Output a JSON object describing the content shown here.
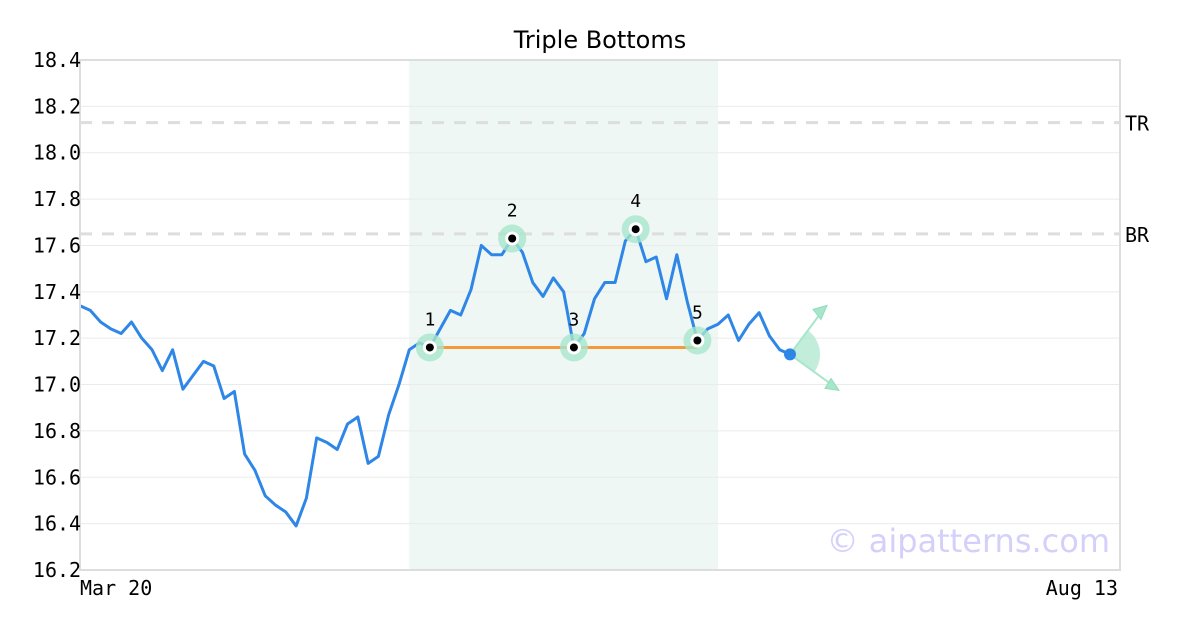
{
  "chart_data": {
    "type": "line",
    "title": "Triple Bottoms",
    "xlabel": "",
    "ylabel": "",
    "ylim": [
      16.2,
      18.4
    ],
    "yticks": [
      "16.2",
      "16.4",
      "16.6",
      "16.8",
      "17.0",
      "17.2",
      "17.4",
      "17.6",
      "17.8",
      "18.0",
      "18.2",
      "18.4"
    ],
    "xtick_labels": {
      "start": "Mar 20",
      "end": "Aug 13"
    },
    "grid": true,
    "values": [
      17.34,
      17.32,
      17.27,
      17.24,
      17.22,
      17.27,
      17.2,
      17.15,
      17.06,
      17.15,
      16.98,
      17.04,
      17.1,
      17.08,
      16.94,
      16.97,
      16.7,
      16.63,
      16.52,
      16.48,
      16.45,
      16.39,
      16.51,
      16.77,
      16.75,
      16.72,
      16.83,
      16.86,
      16.66,
      16.69,
      16.87,
      17.0,
      17.15,
      17.18,
      17.16,
      17.24,
      17.32,
      17.3,
      17.41,
      17.6,
      17.56,
      17.56,
      17.63,
      17.57,
      17.44,
      17.38,
      17.46,
      17.4,
      17.16,
      17.22,
      17.37,
      17.44,
      17.44,
      17.62,
      17.67,
      17.53,
      17.55,
      17.37,
      17.56,
      17.36,
      17.19,
      17.24,
      17.26,
      17.3,
      17.19,
      17.26,
      17.31,
      17.21,
      17.15,
      17.13
    ],
    "pattern_points": [
      {
        "label": "1",
        "index": 34,
        "value": 17.16
      },
      {
        "label": "2",
        "index": 42,
        "value": 17.63
      },
      {
        "label": "3",
        "index": 48,
        "value": 17.16
      },
      {
        "label": "4",
        "index": 54,
        "value": 17.67
      },
      {
        "label": "5",
        "index": 60,
        "value": 17.19
      }
    ],
    "support_level": 17.16,
    "reference_lines": [
      {
        "label": "TR",
        "value": 18.13
      },
      {
        "label": "BR",
        "value": 17.65
      }
    ],
    "pattern_region": {
      "start_index": 32,
      "end_index": 62
    },
    "colors": {
      "line": "#2e86e6",
      "support": "#f59a3c",
      "marker": "#a8e6cc",
      "region": "#eef7f4",
      "ref": "#dddddd"
    }
  },
  "watermark": "© aipatterns.com"
}
